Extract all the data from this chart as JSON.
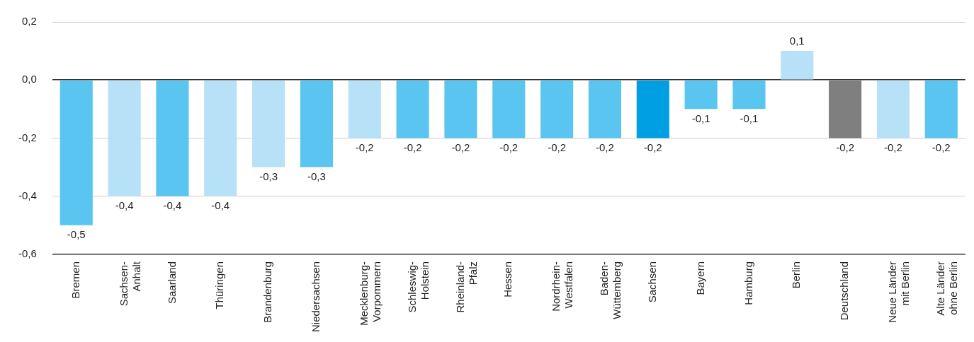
{
  "chart_data": {
    "type": "bar",
    "categories": [
      "Bremen",
      "Sachsen-Anhalt",
      "Saarland",
      "Thüringen",
      "Brandenburg",
      "Niedersachsen",
      "Mecklenburg-Vorpommern",
      "Schleswig-Holstein",
      "Rheinland-Pfalz",
      "Hessen",
      "Nordrhein-Westfalen",
      "Baden-Wüttemberg",
      "Sachsen",
      "Bayern",
      "Hamburg",
      "Berlin",
      "Deutschland",
      "Neue Länder mit Berlin",
      "Alte Länder ohne Berlin"
    ],
    "values": [
      -0.5,
      -0.4,
      -0.4,
      -0.4,
      -0.3,
      -0.3,
      -0.2,
      -0.2,
      -0.2,
      -0.2,
      -0.2,
      -0.2,
      -0.2,
      -0.1,
      -0.1,
      0.1,
      -0.2,
      -0.2,
      -0.2
    ],
    "value_labels": [
      "-0,5",
      "-0,4",
      "-0,4",
      "-0,4",
      "-0,3",
      "-0,3",
      "-0,2",
      "-0,2",
      "-0,2",
      "-0,2",
      "-0,2",
      "-0,2",
      "-0,2",
      "-0,1",
      "-0,1",
      "0,1",
      "-0,2",
      "-0,2",
      "-0,2"
    ],
    "colors": [
      "#5bc5f2",
      "#b7e1f7",
      "#5bc5f2",
      "#b7e1f7",
      "#b7e1f7",
      "#5bc5f2",
      "#b7e1f7",
      "#5bc5f2",
      "#5bc5f2",
      "#5bc5f2",
      "#5bc5f2",
      "#5bc5f2",
      "#009fe3",
      "#5bc5f2",
      "#5bc5f2",
      "#b7e1f7",
      "#7f7f7f",
      "#b7e1f7",
      "#5bc5f2"
    ],
    "ylim": [
      -0.6,
      0.2
    ],
    "yticks": [
      {
        "value": -0.6,
        "label": "-0,6"
      },
      {
        "value": -0.4,
        "label": "-0,4"
      },
      {
        "value": -0.2,
        "label": "-0,2"
      },
      {
        "value": 0,
        "label": "0,0"
      },
      {
        "value": 0.2,
        "label": "0,2"
      }
    ],
    "grid": "y",
    "legend": false
  }
}
